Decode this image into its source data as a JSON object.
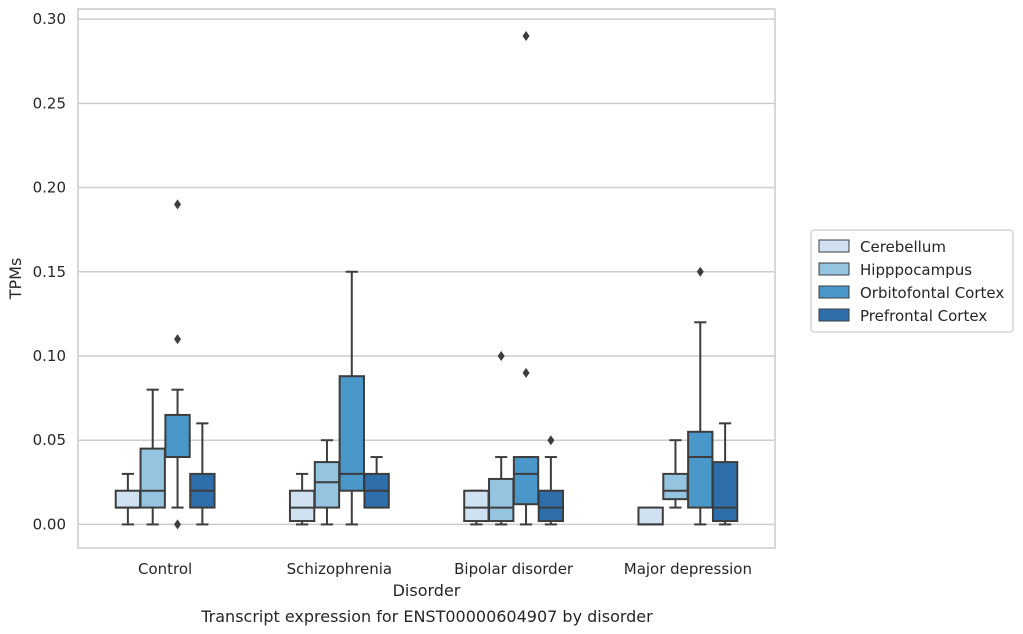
{
  "chart_data": {
    "type": "box",
    "caption": "Transcript expression for ENST00000604907 by disorder",
    "xlabel": "Disorder",
    "ylabel": "TPMs",
    "ylim": [
      -0.014,
      0.306
    ],
    "yticks": [
      0.0,
      0.05,
      0.1,
      0.15,
      0.2,
      0.25,
      0.3
    ],
    "ytick_labels": [
      "0.00",
      "0.05",
      "0.10",
      "0.15",
      "0.20",
      "0.25",
      "0.30"
    ],
    "grid": "horizontal",
    "legend_position": "right",
    "categories": [
      "Control",
      "Schizophrenia",
      "Bipolar disorder",
      "Major depression"
    ],
    "series": [
      {
        "name": "Cerebellum",
        "color": "#d0e1f2",
        "boxes": [
          {
            "whislo": 0.0,
            "q1": 0.01,
            "med": 0.01,
            "q3": 0.02,
            "whishi": 0.03,
            "fliers": []
          },
          {
            "whislo": 0.0,
            "q1": 0.002,
            "med": 0.01,
            "q3": 0.02,
            "whishi": 0.03,
            "fliers": []
          },
          {
            "whislo": 0.0,
            "q1": 0.002,
            "med": 0.01,
            "q3": 0.02,
            "whishi": 0.02,
            "fliers": []
          },
          {
            "whislo": 0.0,
            "q1": 0.0,
            "med": 0.0,
            "q3": 0.01,
            "whishi": 0.01,
            "fliers": []
          }
        ]
      },
      {
        "name": "Hipppocampus",
        "color": "#94c4df",
        "boxes": [
          {
            "whislo": 0.0,
            "q1": 0.01,
            "med": 0.02,
            "q3": 0.045,
            "whishi": 0.08,
            "fliers": []
          },
          {
            "whislo": 0.0,
            "q1": 0.01,
            "med": 0.025,
            "q3": 0.037,
            "whishi": 0.05,
            "fliers": []
          },
          {
            "whislo": 0.0,
            "q1": 0.002,
            "med": 0.01,
            "q3": 0.027,
            "whishi": 0.04,
            "fliers": [
              0.1
            ]
          },
          {
            "whislo": 0.01,
            "q1": 0.015,
            "med": 0.02,
            "q3": 0.03,
            "whishi": 0.05,
            "fliers": []
          }
        ]
      },
      {
        "name": "Orbitofontal Cortex",
        "color": "#4a98c9",
        "boxes": [
          {
            "whislo": 0.01,
            "q1": 0.04,
            "med": 0.04,
            "q3": 0.065,
            "whishi": 0.08,
            "fliers": [
              0.19,
              0.11,
              0.0
            ]
          },
          {
            "whislo": 0.0,
            "q1": 0.02,
            "med": 0.03,
            "q3": 0.088,
            "whishi": 0.15,
            "fliers": []
          },
          {
            "whislo": 0.0,
            "q1": 0.012,
            "med": 0.03,
            "q3": 0.04,
            "whishi": 0.04,
            "fliers": [
              0.29,
              0.09
            ]
          },
          {
            "whislo": 0.0,
            "q1": 0.01,
            "med": 0.04,
            "q3": 0.055,
            "whishi": 0.12,
            "fliers": [
              0.15
            ]
          }
        ]
      },
      {
        "name": "Prefrontal Cortex",
        "color": "#2e6fab",
        "boxes": [
          {
            "whislo": 0.0,
            "q1": 0.01,
            "med": 0.02,
            "q3": 0.03,
            "whishi": 0.06,
            "fliers": []
          },
          {
            "whislo": 0.01,
            "q1": 0.01,
            "med": 0.02,
            "q3": 0.03,
            "whishi": 0.04,
            "fliers": []
          },
          {
            "whislo": 0.0,
            "q1": 0.002,
            "med": 0.01,
            "q3": 0.02,
            "whishi": 0.04,
            "fliers": [
              0.05
            ]
          },
          {
            "whislo": 0.0,
            "q1": 0.002,
            "med": 0.01,
            "q3": 0.037,
            "whishi": 0.06,
            "fliers": []
          }
        ]
      }
    ]
  }
}
